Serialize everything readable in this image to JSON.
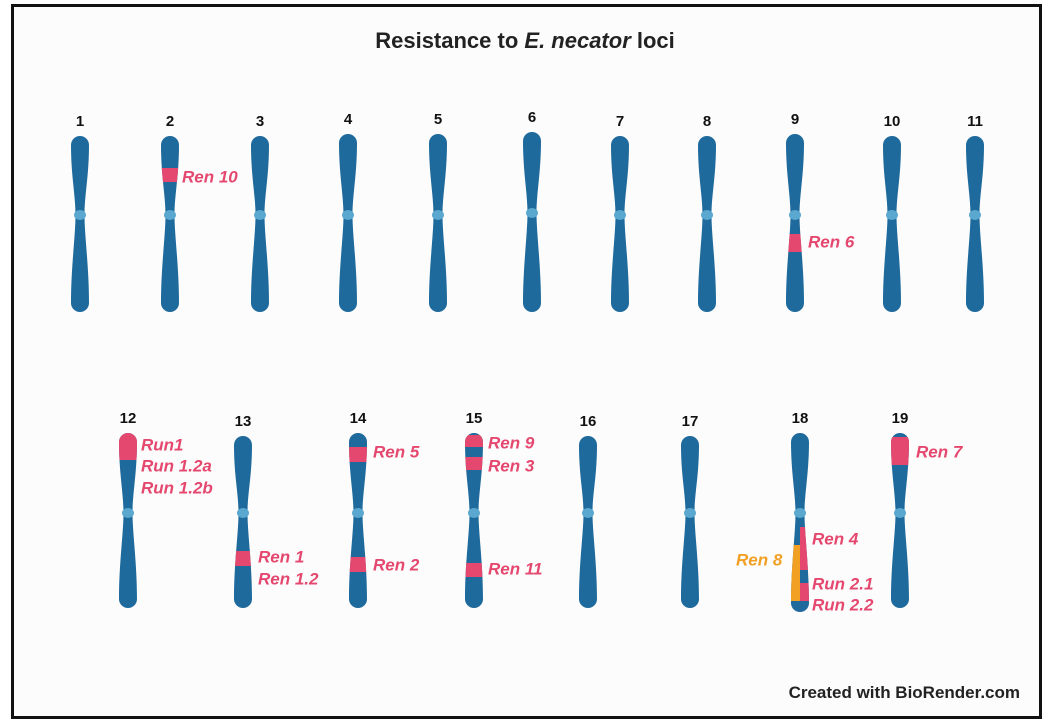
{
  "title": {
    "prefix": "Resistance to ",
    "italic": "E. necator",
    "suffix": " loci"
  },
  "footer": "Created with BioRender.com",
  "colors": {
    "chromosome": "#1f6a9c",
    "centromere": "#5aa8cf",
    "locus": "#e5486f",
    "orange_locus": "#f2a024"
  },
  "chromosomes": [
    "1",
    "2",
    "3",
    "4",
    "5",
    "6",
    "7",
    "8",
    "9",
    "10",
    "11",
    "12",
    "13",
    "14",
    "15",
    "16",
    "17",
    "18",
    "19"
  ],
  "loci": [
    {
      "chromosome": "2",
      "label": "Ren 10"
    },
    {
      "chromosome": "9",
      "label": "Ren 6"
    },
    {
      "chromosome": "12",
      "label": "Run1"
    },
    {
      "chromosome": "12",
      "label": "Run 1.2a"
    },
    {
      "chromosome": "12",
      "label": "Run 1.2b"
    },
    {
      "chromosome": "13",
      "label": "Ren 1"
    },
    {
      "chromosome": "13",
      "label": "Ren 1.2"
    },
    {
      "chromosome": "14",
      "label": "Ren 5"
    },
    {
      "chromosome": "14",
      "label": "Ren 2"
    },
    {
      "chromosome": "15",
      "label": "Ren 9"
    },
    {
      "chromosome": "15",
      "label": "Ren 3"
    },
    {
      "chromosome": "15",
      "label": "Ren 11"
    },
    {
      "chromosome": "18",
      "label": "Ren 4"
    },
    {
      "chromosome": "18",
      "label": "Ren 8"
    },
    {
      "chromosome": "18",
      "label": "Run 2.1"
    },
    {
      "chromosome": "18",
      "label": "Run 2.2"
    },
    {
      "chromosome": "19",
      "label": "Ren 7"
    }
  ]
}
